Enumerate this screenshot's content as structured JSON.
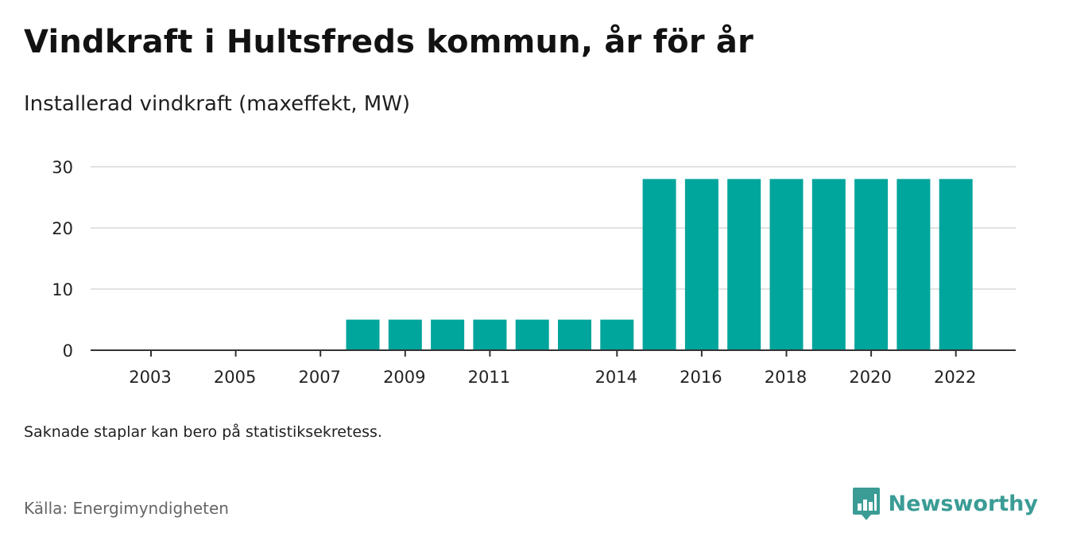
{
  "header": {
    "title": "Vindkraft i Hultsfreds kommun, år för år",
    "subtitle": "Installerad vindkraft (maxeffekt, MW)"
  },
  "footer": {
    "note": "Saknade staplar kan bero på statistiksekretess.",
    "source": "Källa: Energimyndigheten",
    "brand": "Newsworthy"
  },
  "colors": {
    "bar": "#00a59c",
    "grid": "#d9d9d9",
    "axis": "#333333",
    "brand": "#3a9c95"
  },
  "icons": {
    "brand_logo": "newsworthy-chat-bar-icon"
  },
  "chart_data": {
    "type": "bar",
    "title": "Vindkraft i Hultsfreds kommun, år för år",
    "subtitle": "Installerad vindkraft (maxeffekt, MW)",
    "xlabel": "",
    "ylabel": "",
    "categories": [
      "2003",
      "2004",
      "2005",
      "2006",
      "2007",
      "2008",
      "2009",
      "2010",
      "2011",
      "2012",
      "2013",
      "2014",
      "2015",
      "2016",
      "2017",
      "2018",
      "2019",
      "2020",
      "2021",
      "2022"
    ],
    "values": [
      0,
      0,
      0,
      0,
      0,
      5,
      5,
      5,
      5,
      5,
      5,
      5,
      28,
      28,
      28,
      28,
      28,
      28,
      28,
      28
    ],
    "x_tick_labels": [
      "2003",
      "2005",
      "2007",
      "2009",
      "2011",
      "2014",
      "2016",
      "2018",
      "2020",
      "2022"
    ],
    "y_ticks": [
      0,
      10,
      20,
      30
    ],
    "ylim": [
      0,
      30
    ],
    "grid": true,
    "legend": "none"
  }
}
